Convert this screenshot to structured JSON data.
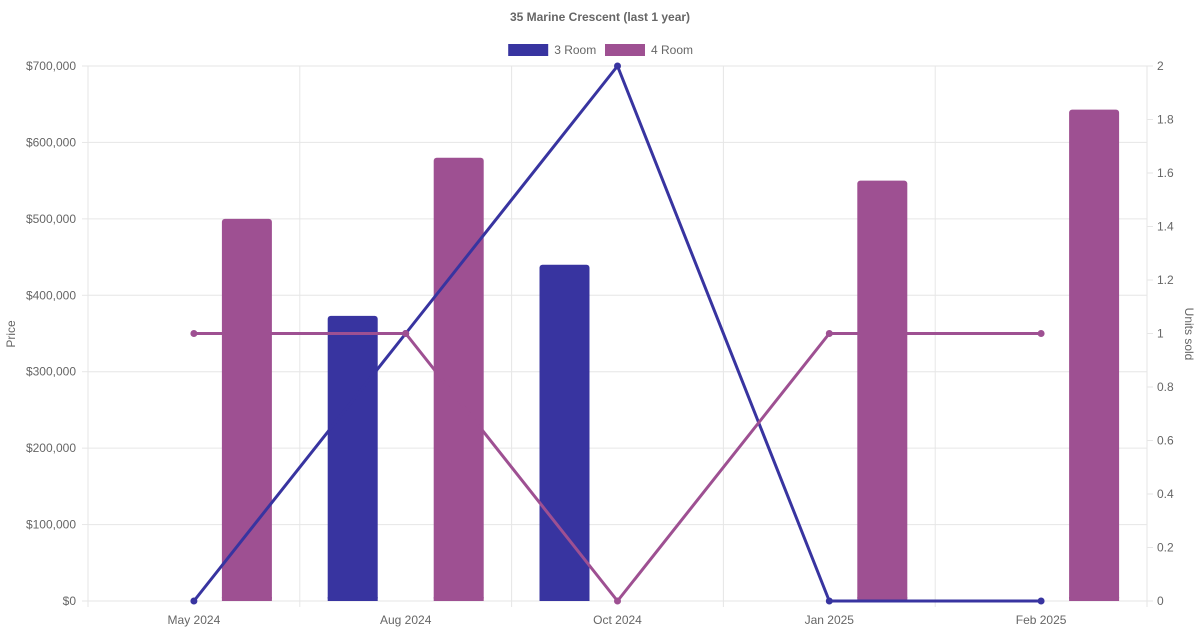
{
  "chart_data": {
    "type": "bar",
    "title": "35 Marine Crescent (last 1 year)",
    "categories": [
      "May 2024",
      "Aug 2024",
      "Oct 2024",
      "Jan 2025",
      "Feb 2025"
    ],
    "y_left": {
      "label": "Price",
      "range": [
        0,
        700000
      ],
      "ticks": [
        "$0",
        "$100,000",
        "$200,000",
        "$300,000",
        "$400,000",
        "$500,000",
        "$600,000",
        "$700,000"
      ]
    },
    "y_right": {
      "label": "Units sold",
      "range": [
        0,
        2
      ],
      "ticks": [
        "0",
        "0.2",
        "0.4",
        "0.6",
        "0.8",
        "1",
        "1.2",
        "1.4",
        "1.6",
        "1.8",
        "2"
      ]
    },
    "grid": true,
    "legend_position": "top",
    "series": [
      {
        "name": "3 Room",
        "color": "#3834a0",
        "price": [
          null,
          373000,
          440000,
          null,
          null
        ],
        "units_sold": [
          0,
          1,
          2,
          0,
          0
        ]
      },
      {
        "name": "4 Room",
        "color": "#9e5092",
        "price": [
          500000,
          580000,
          null,
          550000,
          643000
        ],
        "units_sold": [
          1,
          1,
          0,
          1,
          1
        ]
      }
    ]
  }
}
